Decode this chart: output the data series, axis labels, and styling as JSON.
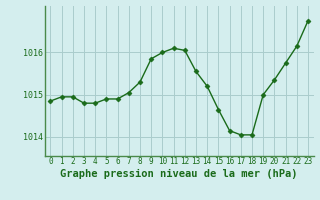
{
  "x": [
    0,
    1,
    2,
    3,
    4,
    5,
    6,
    7,
    8,
    9,
    10,
    11,
    12,
    13,
    14,
    15,
    16,
    17,
    18,
    19,
    20,
    21,
    22,
    23
  ],
  "y": [
    1014.85,
    1014.95,
    1014.95,
    1014.8,
    1014.8,
    1014.9,
    1014.9,
    1015.05,
    1015.3,
    1015.85,
    1016.0,
    1016.1,
    1016.05,
    1015.55,
    1015.2,
    1014.65,
    1014.15,
    1014.05,
    1014.05,
    1015.0,
    1015.35,
    1015.75,
    1016.15,
    1016.75
  ],
  "line_color": "#1a6b1a",
  "marker": "D",
  "marker_size": 2.5,
  "linewidth": 1.0,
  "background_color": "#d4eeee",
  "grid_color": "#aacccc",
  "yticks": [
    1014,
    1015,
    1016
  ],
  "xtick_labels": [
    "0",
    "1",
    "2",
    "3",
    "4",
    "5",
    "6",
    "7",
    "8",
    "9",
    "10",
    "11",
    "12",
    "13",
    "14",
    "15",
    "16",
    "17",
    "18",
    "19",
    "20",
    "21",
    "22",
    "23"
  ],
  "xlabel": "Graphe pression niveau de la mer (hPa)",
  "ylim": [
    1013.55,
    1017.1
  ],
  "xlim": [
    -0.5,
    23.5
  ],
  "tick_color": "#1a6b1a",
  "label_fontsize": 5.5,
  "xlabel_fontsize": 7.5,
  "spine_color": "#4a8a4a"
}
